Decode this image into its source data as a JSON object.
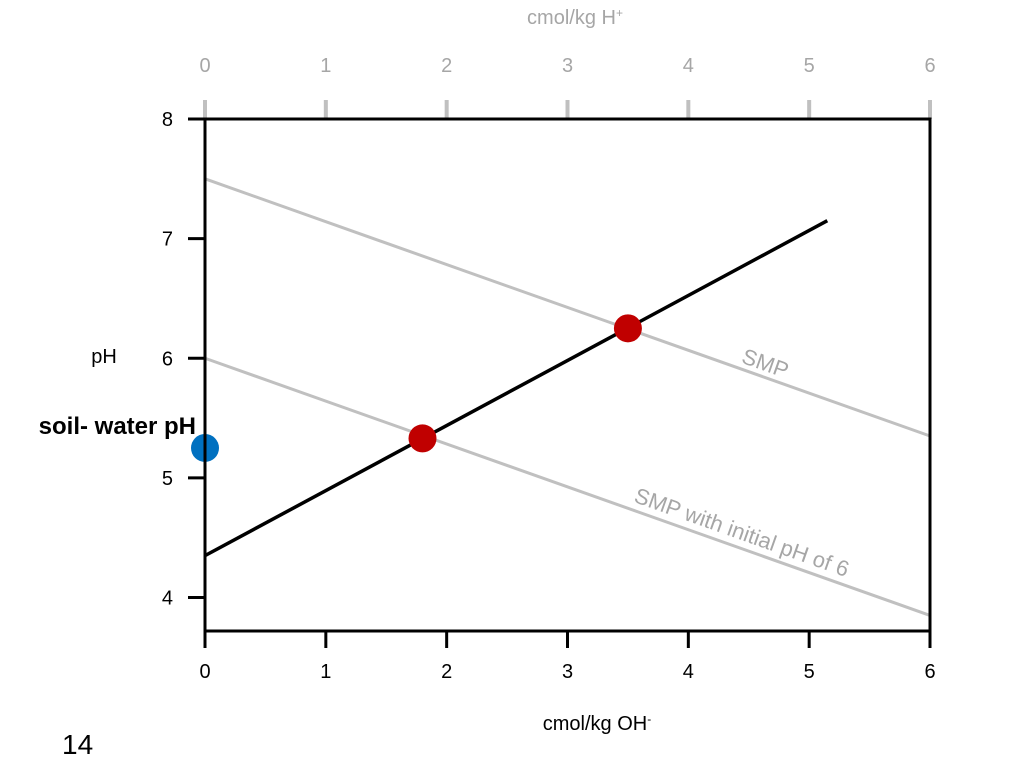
{
  "slide_number": "14",
  "chart_data": {
    "type": "line",
    "xlabel": "cmol/kg OH",
    "xlabel_superscript": "-",
    "x2label": "cmol/kg H",
    "x2label_superscript": "+",
    "ylabel": "pH",
    "x_ticks": [
      "0",
      "1",
      "2",
      "3",
      "4",
      "5",
      "6"
    ],
    "x2_ticks": [
      "0",
      "1",
      "2",
      "3",
      "4",
      "5",
      "6"
    ],
    "y_ticks": [
      "4",
      "5",
      "6",
      "7",
      "8"
    ],
    "xlim": [
      0,
      6
    ],
    "ylim": [
      3.72,
      8
    ],
    "grid": false,
    "series": [
      {
        "name": "SMP",
        "axis": "top",
        "color": "#c0c0c0",
        "points": [
          [
            0,
            7.5
          ],
          [
            6,
            5.35
          ]
        ]
      },
      {
        "name": "SMP with initial pH of 6",
        "axis": "top",
        "color": "#c0c0c0",
        "points": [
          [
            0,
            6.0
          ],
          [
            6,
            3.85
          ]
        ]
      },
      {
        "axis": "bottom",
        "color": "#000000",
        "points": [
          [
            0,
            4.35
          ],
          [
            5.15,
            7.15
          ]
        ]
      }
    ],
    "markers": [
      {
        "x": 3.5,
        "y": 6.25,
        "color": "#c00000"
      },
      {
        "x": 1.8,
        "y": 5.33,
        "color": "#c00000"
      },
      {
        "x": 0,
        "y": 5.25,
        "color": "#0070c0",
        "label": "soil- water pH"
      }
    ]
  }
}
